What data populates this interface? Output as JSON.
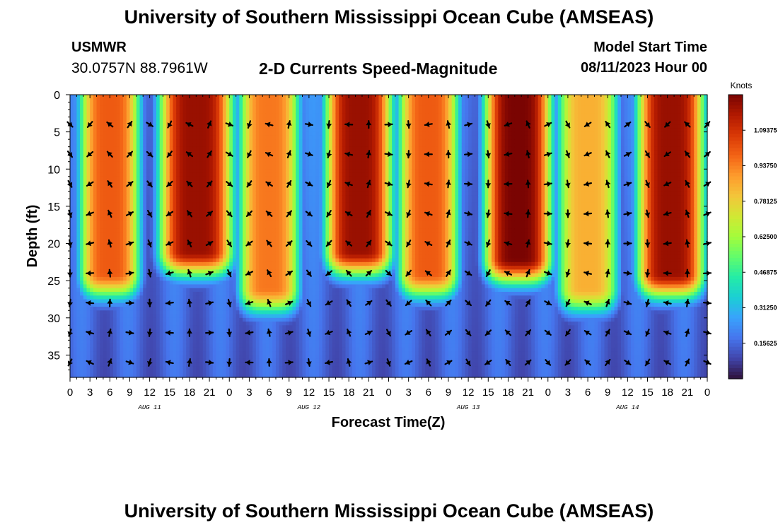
{
  "header": {
    "title": "University of Southern Mississippi Ocean Cube (AMSEAS)",
    "station": "USMWR",
    "coords": "30.0757N  88.7961W",
    "subtitle": "2-D Currents Speed-Magnitude",
    "start_label": "Model Start Time",
    "start_value": "08/11/2023 Hour 00"
  },
  "footer": {
    "title": "University of Southern Mississippi Ocean Cube (AMSEAS)"
  },
  "colors": {
    "scale": [
      "#30123b",
      "#4145ab",
      "#4675ed",
      "#39a2fc",
      "#1bcfd4",
      "#24eca6",
      "#61fc6c",
      "#a4fc3b",
      "#d1e834",
      "#f3c63a",
      "#fe9b2d",
      "#f36315",
      "#d93806",
      "#b11901",
      "#7a0402"
    ]
  },
  "chart_data": {
    "type": "heatmap",
    "xlabel": "Forecast Time(Z)",
    "ylabel": "Depth (ft)",
    "x_range_hours": [
      0,
      96
    ],
    "y_range_ft": [
      0,
      38
    ],
    "x_ticks": [
      "0",
      "3",
      "6",
      "9",
      "12",
      "15",
      "18",
      "21",
      "0",
      "3",
      "6",
      "9",
      "12",
      "15",
      "18",
      "21",
      "0",
      "3",
      "6",
      "9",
      "12",
      "15",
      "18",
      "21",
      "0",
      "3",
      "6",
      "9",
      "12",
      "15",
      "18",
      "21",
      "0"
    ],
    "y_ticks": [
      "0",
      "5",
      "10",
      "15",
      "20",
      "25",
      "30",
      "35"
    ],
    "date_labels": [
      "AUG 11",
      "AUG 12",
      "AUG 13",
      "AUG 14"
    ],
    "colorbar": {
      "unit": "Knots",
      "range": [
        0,
        1.25
      ],
      "labels": [
        "1.09375",
        "0.93750",
        "0.78125",
        "0.62500",
        "0.46875",
        "0.31250",
        "0.15625"
      ]
    },
    "speed_peaks": [
      {
        "hours": [
          3,
          9
        ],
        "max_knots": 1.0,
        "extent_ft": 24
      },
      {
        "hours": [
          15,
          23
        ],
        "max_knots": 1.2,
        "extent_ft": 21
      },
      {
        "hours": [
          27,
          33
        ],
        "max_knots": 0.95,
        "extent_ft": 26
      },
      {
        "hours": [
          40,
          47
        ],
        "max_knots": 1.2,
        "extent_ft": 21
      },
      {
        "hours": [
          51,
          57
        ],
        "max_knots": 1.0,
        "extent_ft": 24
      },
      {
        "hours": [
          64,
          71
        ],
        "max_knots": 1.25,
        "extent_ft": 22
      },
      {
        "hours": [
          75,
          81
        ],
        "max_knots": 0.85,
        "extent_ft": 26
      },
      {
        "hours": [
          87,
          94
        ],
        "max_knots": 1.2,
        "extent_ft": 24
      }
    ]
  }
}
